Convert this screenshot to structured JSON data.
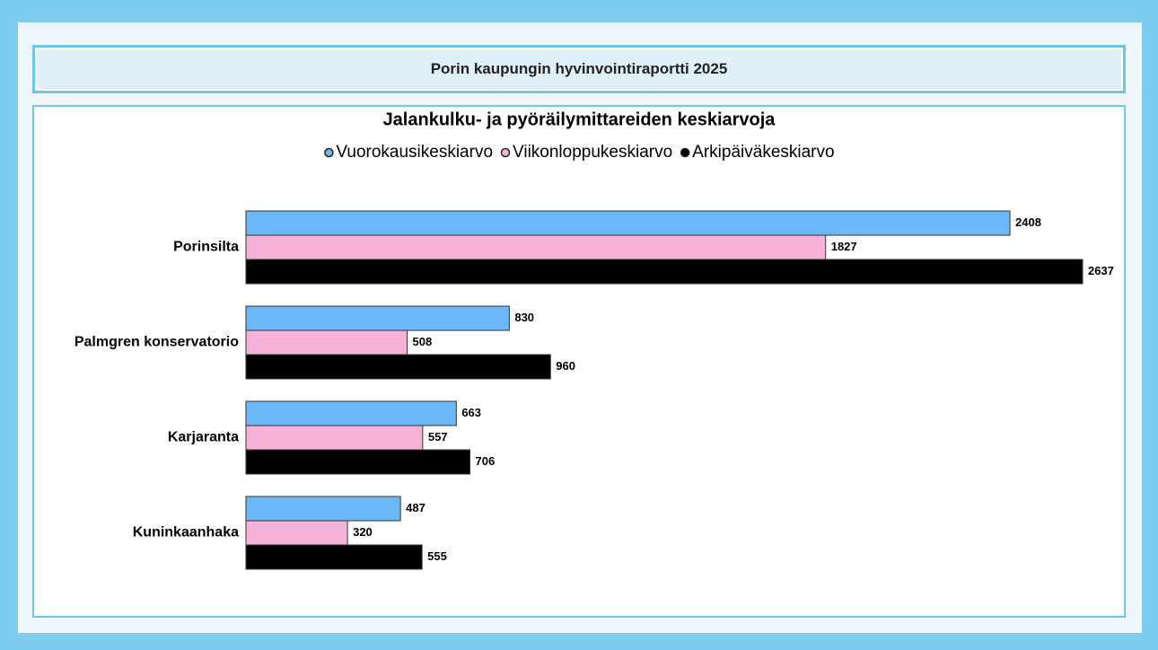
{
  "header": {
    "title": "Porin kaupungin hyvinvointiraportti 2025"
  },
  "chart_data": {
    "type": "bar",
    "orientation": "horizontal",
    "title": "Jalankulku- ja pyöräilymittareiden keskiarvoja",
    "categories": [
      "Porinsilta",
      "Palmgren konservatorio",
      "Karjaranta",
      "Kuninkaanhaka"
    ],
    "series": [
      {
        "name": "Vuorokausikeskiarvo",
        "color": "#6cb8f6",
        "values": [
          2408,
          830,
          663,
          487
        ]
      },
      {
        "name": "Viikonloppukeskiarvo",
        "color": "#f6b2d9",
        "values": [
          1827,
          508,
          557,
          320
        ]
      },
      {
        "name": "Arkipäiväkeskiarvo",
        "color": "#000000",
        "values": [
          2637,
          960,
          706,
          555
        ]
      }
    ],
    "legend": "top",
    "grid": false
  }
}
